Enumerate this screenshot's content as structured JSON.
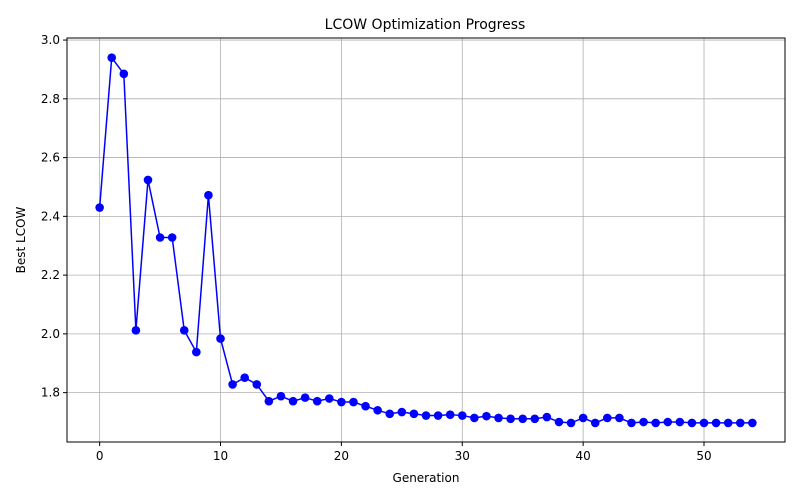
{
  "chart_data": {
    "type": "line",
    "title": "LCOW Optimization Progress",
    "xlabel": "Generation",
    "ylabel": "Best LCOW",
    "xlim": [
      -2.7,
      56.7
    ],
    "ylim": [
      1.632,
      3.007
    ],
    "xticks": [
      0,
      10,
      20,
      30,
      40,
      50
    ],
    "yticks": [
      1.8,
      2.0,
      2.2,
      2.4,
      2.6,
      2.8,
      3.0
    ],
    "grid": true,
    "series": [
      {
        "color": "#0000ff",
        "x": [
          0,
          1,
          2,
          3,
          4,
          5,
          6,
          7,
          8,
          9,
          10,
          11,
          12,
          13,
          14,
          15,
          16,
          17,
          18,
          19,
          20,
          21,
          22,
          23,
          24,
          25,
          26,
          27,
          28,
          29,
          30,
          31,
          32,
          33,
          34,
          35,
          36,
          37,
          38,
          39,
          40,
          41,
          42,
          43,
          44,
          45,
          46,
          47,
          48,
          49,
          50,
          51,
          52,
          53,
          54
        ],
        "y": [
          2.43,
          2.94,
          2.885,
          2.012,
          2.524,
          2.328,
          2.328,
          2.012,
          1.938,
          2.472,
          1.984,
          1.828,
          1.851,
          1.828,
          1.771,
          1.788,
          1.771,
          1.783,
          1.771,
          1.78,
          1.768,
          1.768,
          1.754,
          1.74,
          1.728,
          1.734,
          1.728,
          1.722,
          1.722,
          1.725,
          1.722,
          1.714,
          1.72,
          1.714,
          1.711,
          1.711,
          1.711,
          1.717,
          1.7,
          1.697,
          1.714,
          1.697,
          1.714,
          1.714,
          1.697,
          1.7,
          1.697,
          1.7,
          1.7,
          1.697,
          1.697,
          1.697,
          1.697,
          1.697,
          1.697
        ]
      }
    ]
  }
}
